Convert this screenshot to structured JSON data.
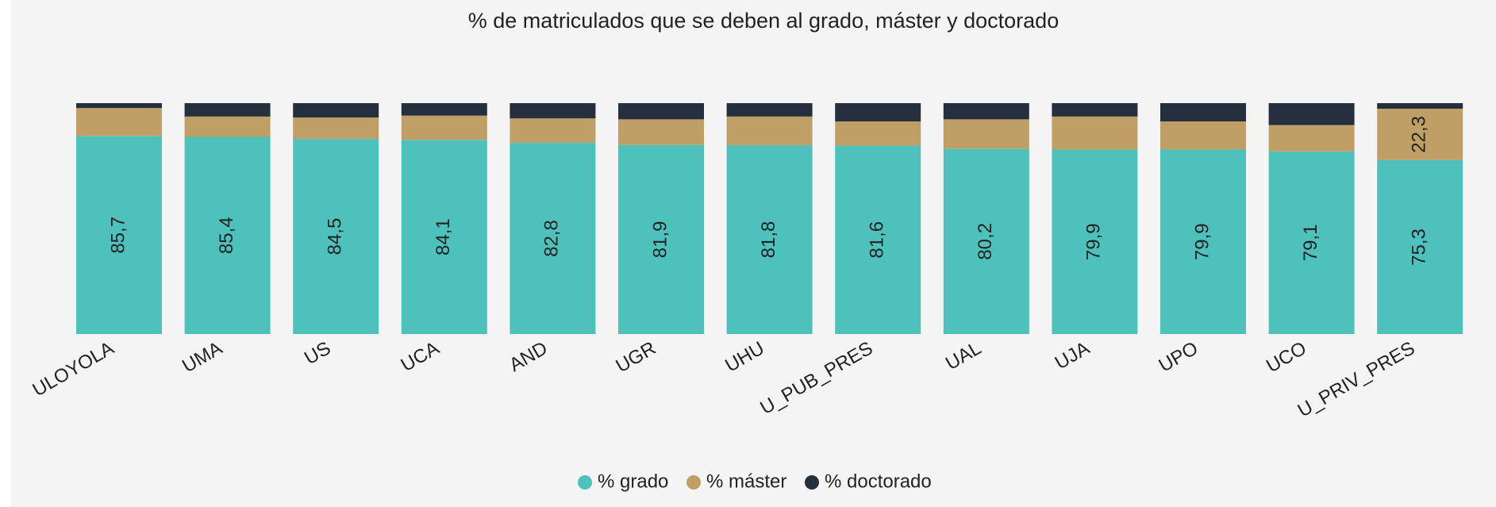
{
  "chart_data": {
    "type": "stacked_bar",
    "title": "% de matriculados que se deben al grado, máster y doctorado",
    "categories": [
      "ULOYOLA",
      "UMA",
      "US",
      "UCA",
      "AND",
      "UGR",
      "UHU",
      "U_PUB_PRES",
      "UAL",
      "UJA",
      "UPO",
      "UCO",
      "U_PRIV_PRES"
    ],
    "ylim": [
      0,
      100
    ],
    "series": [
      {
        "name": "% grado",
        "color": "#4fc1bd",
        "values": [
          85.7,
          85.4,
          84.5,
          84.1,
          82.8,
          81.9,
          81.8,
          81.6,
          80.2,
          79.9,
          79.9,
          79.1,
          75.3
        ],
        "value_labels": [
          "85,7",
          "85,4",
          "84,5",
          "84,1",
          "82,8",
          "81,9",
          "81,8",
          "81,6",
          "80,2",
          "79,9",
          "79,9",
          "79,1",
          "75,3"
        ]
      },
      {
        "name": "% máster",
        "color": "#bf9f66",
        "values": [
          12.2,
          8.8,
          9.3,
          10.5,
          10.6,
          11.1,
          12.4,
          10.5,
          12.8,
          14.3,
          12.2,
          11.4,
          22.3
        ],
        "value_labels": [
          null,
          null,
          null,
          null,
          null,
          null,
          null,
          null,
          null,
          null,
          null,
          null,
          "22,3"
        ]
      },
      {
        "name": "% doctorado",
        "color": "#252f3e",
        "values": [
          2.1,
          5.8,
          6.2,
          5.4,
          6.6,
          7.0,
          5.8,
          7.9,
          7.0,
          5.8,
          7.9,
          9.5,
          2.4
        ]
      }
    ],
    "legend": "bottom"
  }
}
